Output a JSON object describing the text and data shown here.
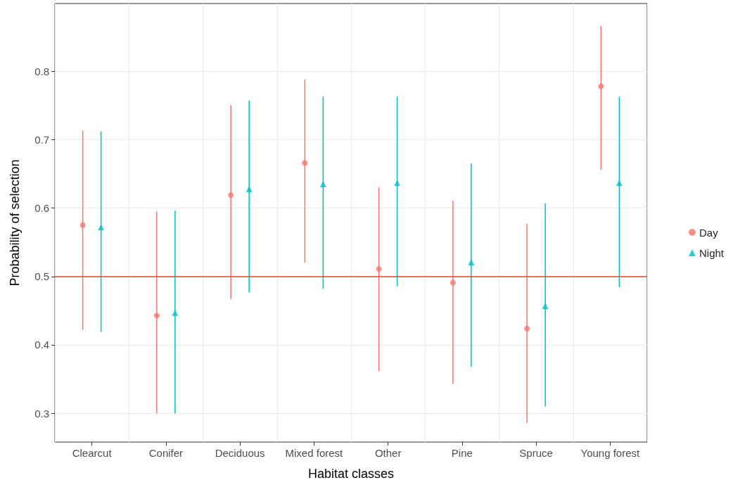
{
  "chart_data": {
    "type": "scatter",
    "xlabel": "Habitat classes",
    "ylabel": "Probability of selection",
    "categories": [
      "Clearcut",
      "Conifer",
      "Deciduous",
      "Mixed forest",
      "Other",
      "Pine",
      "Spruce",
      "Young forest"
    ],
    "series": [
      {
        "name": "Day",
        "color": "#f8766d",
        "marker": "circle",
        "values": [
          0.575,
          0.443,
          0.619,
          0.666,
          0.511,
          0.491,
          0.424,
          0.778
        ],
        "errors": [
          [
            0.422,
            0.713
          ],
          [
            0.3,
            0.595
          ],
          [
            0.467,
            0.75
          ],
          [
            0.52,
            0.788
          ],
          [
            0.362,
            0.63
          ],
          [
            0.343,
            0.611
          ],
          [
            0.286,
            0.577
          ],
          [
            0.656,
            0.866
          ]
        ]
      },
      {
        "name": "Night",
        "color": "#00bfc4",
        "marker": "triangle",
        "values": [
          0.572,
          0.447,
          0.628,
          0.635,
          0.637,
          0.521,
          0.457,
          0.637
        ],
        "errors": [
          [
            0.419,
            0.712
          ],
          [
            0.3,
            0.596
          ],
          [
            0.477,
            0.757
          ],
          [
            0.482,
            0.763
          ],
          [
            0.486,
            0.763
          ],
          [
            0.368,
            0.665
          ],
          [
            0.31,
            0.607
          ],
          [
            0.484,
            0.763
          ]
        ]
      }
    ],
    "ylim": [
      0.258,
      0.899
    ],
    "yticks": [
      0.3,
      0.4,
      0.5,
      0.6,
      0.7,
      0.8
    ],
    "grid": true,
    "legend": "right",
    "ref_lines": [
      {
        "axis": "y",
        "value": 0.5,
        "color": "#e8403a"
      }
    ]
  }
}
